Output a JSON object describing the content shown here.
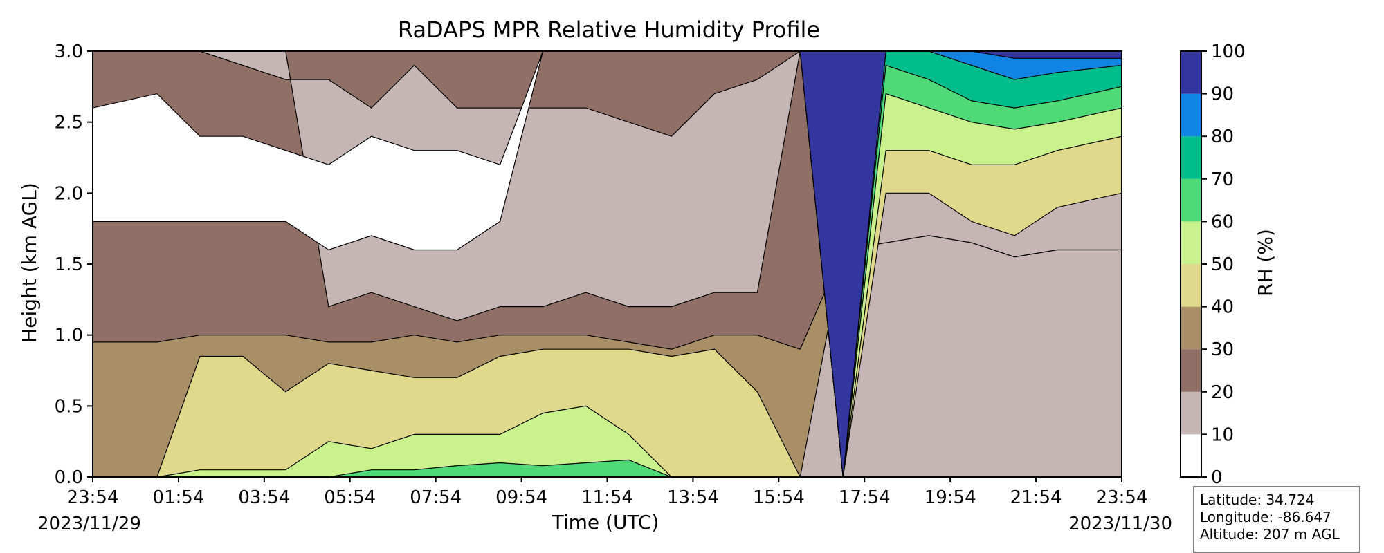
{
  "chart_data": {
    "type": "heatmap",
    "title": "RaDAPS MPR Relative Humidity Profile",
    "xlabel": "Time (UTC)",
    "ylabel": "Height (km AGL)",
    "x_ticks": [
      "23:54",
      "01:54",
      "03:54",
      "05:54",
      "07:54",
      "09:54",
      "11:54",
      "13:54",
      "15:54",
      "17:54",
      "19:54",
      "21:54",
      "23:54"
    ],
    "x_range_hours": [
      0,
      24
    ],
    "start_date": "2023/11/29",
    "end_date": "2023/11/30",
    "ylim": [
      0,
      3.0
    ],
    "y_ticks": [
      "0.0",
      "0.5",
      "1.0",
      "1.5",
      "2.0",
      "2.5",
      "3.0"
    ],
    "colorbar": {
      "label": "RH (%)",
      "levels": [
        0,
        10,
        20,
        30,
        40,
        50,
        60,
        70,
        80,
        90,
        100
      ],
      "tick_labels": [
        "0",
        "10",
        "20",
        "30",
        "40",
        "50",
        "60",
        "70",
        "80",
        "90",
        "100"
      ],
      "colors": [
        "#ffffff",
        "#c5b6b5",
        "#8f6f66",
        "#a88f66",
        "#e0d88a",
        "#c9f28c",
        "#4fd977",
        "#00bd8c",
        "#1183e3",
        "#33369e"
      ]
    },
    "profile_times_hours": [
      0,
      1.5,
      2.5,
      3.5,
      4.5,
      5.5,
      6.5,
      7.5,
      8.5,
      9.5,
      10.5,
      11.5,
      12.5,
      13.5,
      14.5,
      15.5,
      16.5,
      17.5,
      18.5,
      19.5,
      20.5,
      21.5,
      22.5,
      24
    ],
    "rh_level_heights_km": {
      "10": [
        1.8,
        1.8,
        1.8,
        1.8,
        1.8,
        1.6,
        1.7,
        1.6,
        1.6,
        1.8,
        3.0,
        3.0,
        3.0,
        3.0,
        3.0,
        3.0,
        3.0,
        3.0,
        0.0,
        0.0,
        0.0,
        0.0,
        0.0,
        0.0
      ],
      "10_upper": [
        2.6,
        2.7,
        2.4,
        2.4,
        2.3,
        2.2,
        2.4,
        2.3,
        2.3,
        2.2,
        3.0,
        3.0,
        3.0,
        3.0,
        3.0,
        3.0,
        3.0,
        3.0,
        0.0,
        0.0,
        0.0,
        0.0,
        0.0,
        0.0
      ],
      "20": [
        3.0,
        3.0,
        3.0,
        3.0,
        3.0,
        1.2,
        1.3,
        1.2,
        1.1,
        1.2,
        1.2,
        1.3,
        1.2,
        1.2,
        1.3,
        1.3,
        3.0,
        3.0,
        1.3,
        1.4,
        1.4,
        1.5,
        1.4,
        1.4
      ],
      "20_top": [
        3.0,
        3.0,
        3.0,
        2.9,
        2.8,
        2.8,
        2.6,
        2.9,
        2.6,
        2.6,
        2.6,
        2.6,
        2.5,
        2.4,
        2.7,
        2.8,
        3.0,
        3.0,
        3.0,
        3.0,
        3.0,
        3.0,
        3.0,
        3.0
      ],
      "30": [
        0.95,
        0.95,
        1.0,
        1.0,
        1.0,
        0.95,
        0.95,
        1.0,
        0.95,
        1.0,
        1.0,
        1.0,
        0.95,
        0.9,
        1.0,
        1.0,
        0.9,
        1.6,
        1.65,
        1.7,
        1.65,
        1.55,
        1.6,
        1.6
      ],
      "40": [
        0.0,
        0.0,
        0.85,
        0.85,
        0.6,
        0.8,
        0.75,
        0.7,
        0.7,
        0.85,
        0.9,
        0.9,
        0.9,
        0.85,
        0.9,
        0.6,
        0.0,
        0.0,
        2.0,
        2.0,
        1.8,
        1.7,
        1.9,
        2.0
      ],
      "50": [
        0.0,
        0.0,
        0.05,
        0.05,
        0.05,
        0.25,
        0.2,
        0.3,
        0.3,
        0.3,
        0.45,
        0.5,
        0.3,
        0.0,
        0.0,
        0.0,
        0.0,
        0.0,
        2.3,
        2.3,
        2.2,
        2.2,
        2.3,
        2.4
      ],
      "60": [
        0.0,
        0.0,
        0.0,
        0.0,
        0.0,
        0.0,
        0.05,
        0.05,
        0.08,
        0.1,
        0.08,
        0.1,
        0.12,
        0.0,
        0.0,
        0.0,
        0.0,
        0.0,
        2.7,
        2.6,
        2.5,
        2.45,
        2.5,
        2.6
      ],
      "70": [
        0.0,
        0.0,
        0.0,
        0.0,
        0.0,
        0.0,
        0.0,
        0.0,
        0.0,
        0.0,
        0.0,
        0.0,
        0.0,
        0.0,
        0.0,
        0.0,
        0.0,
        0.0,
        2.9,
        2.8,
        2.65,
        2.6,
        2.65,
        2.75
      ],
      "80": [
        0.0,
        0.0,
        0.0,
        0.0,
        0.0,
        0.0,
        0.0,
        0.0,
        0.0,
        0.0,
        0.0,
        0.0,
        0.0,
        0.0,
        0.0,
        0.0,
        0.0,
        0.0,
        3.0,
        3.0,
        2.9,
        2.8,
        2.85,
        2.9
      ],
      "90": [
        0.0,
        0.0,
        0.0,
        0.0,
        0.0,
        0.0,
        0.0,
        0.0,
        0.0,
        0.0,
        0.0,
        0.0,
        0.0,
        0.0,
        0.0,
        0.0,
        0.0,
        0.0,
        3.0,
        3.0,
        3.0,
        2.95,
        2.95,
        2.95
      ]
    }
  },
  "station": {
    "latitude": "Latitude: 34.724",
    "longitude": "Longitude: -86.647",
    "altitude": "Altitude: 207 m AGL"
  }
}
